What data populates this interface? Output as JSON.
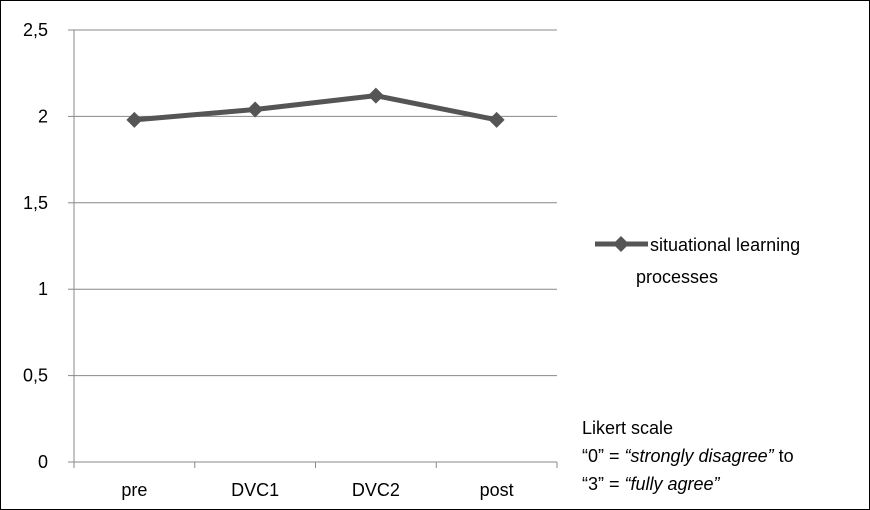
{
  "chart_data": {
    "type": "line",
    "categories": [
      "pre",
      "DVC1",
      "DVC2",
      "post"
    ],
    "series": [
      {
        "name": "situational learning processes",
        "values": [
          1.98,
          2.04,
          2.12,
          1.98
        ]
      }
    ],
    "yticks": [
      "0",
      "0,5",
      "1",
      "1,5",
      "2",
      "2,5"
    ],
    "ylim": [
      0,
      2.5
    ],
    "grid": true,
    "legend_position": "right",
    "series_color": "#555555",
    "legend_lines": [
      "situational learning",
      "processes"
    ]
  },
  "annotation": {
    "line1": "Likert scale",
    "line2_prefix": "“0” = ",
    "line2_italic": "“strongly disagree”",
    "line2_suffix": " to",
    "line3_prefix": "“3” = ",
    "line3_italic": "“fully agree”"
  }
}
